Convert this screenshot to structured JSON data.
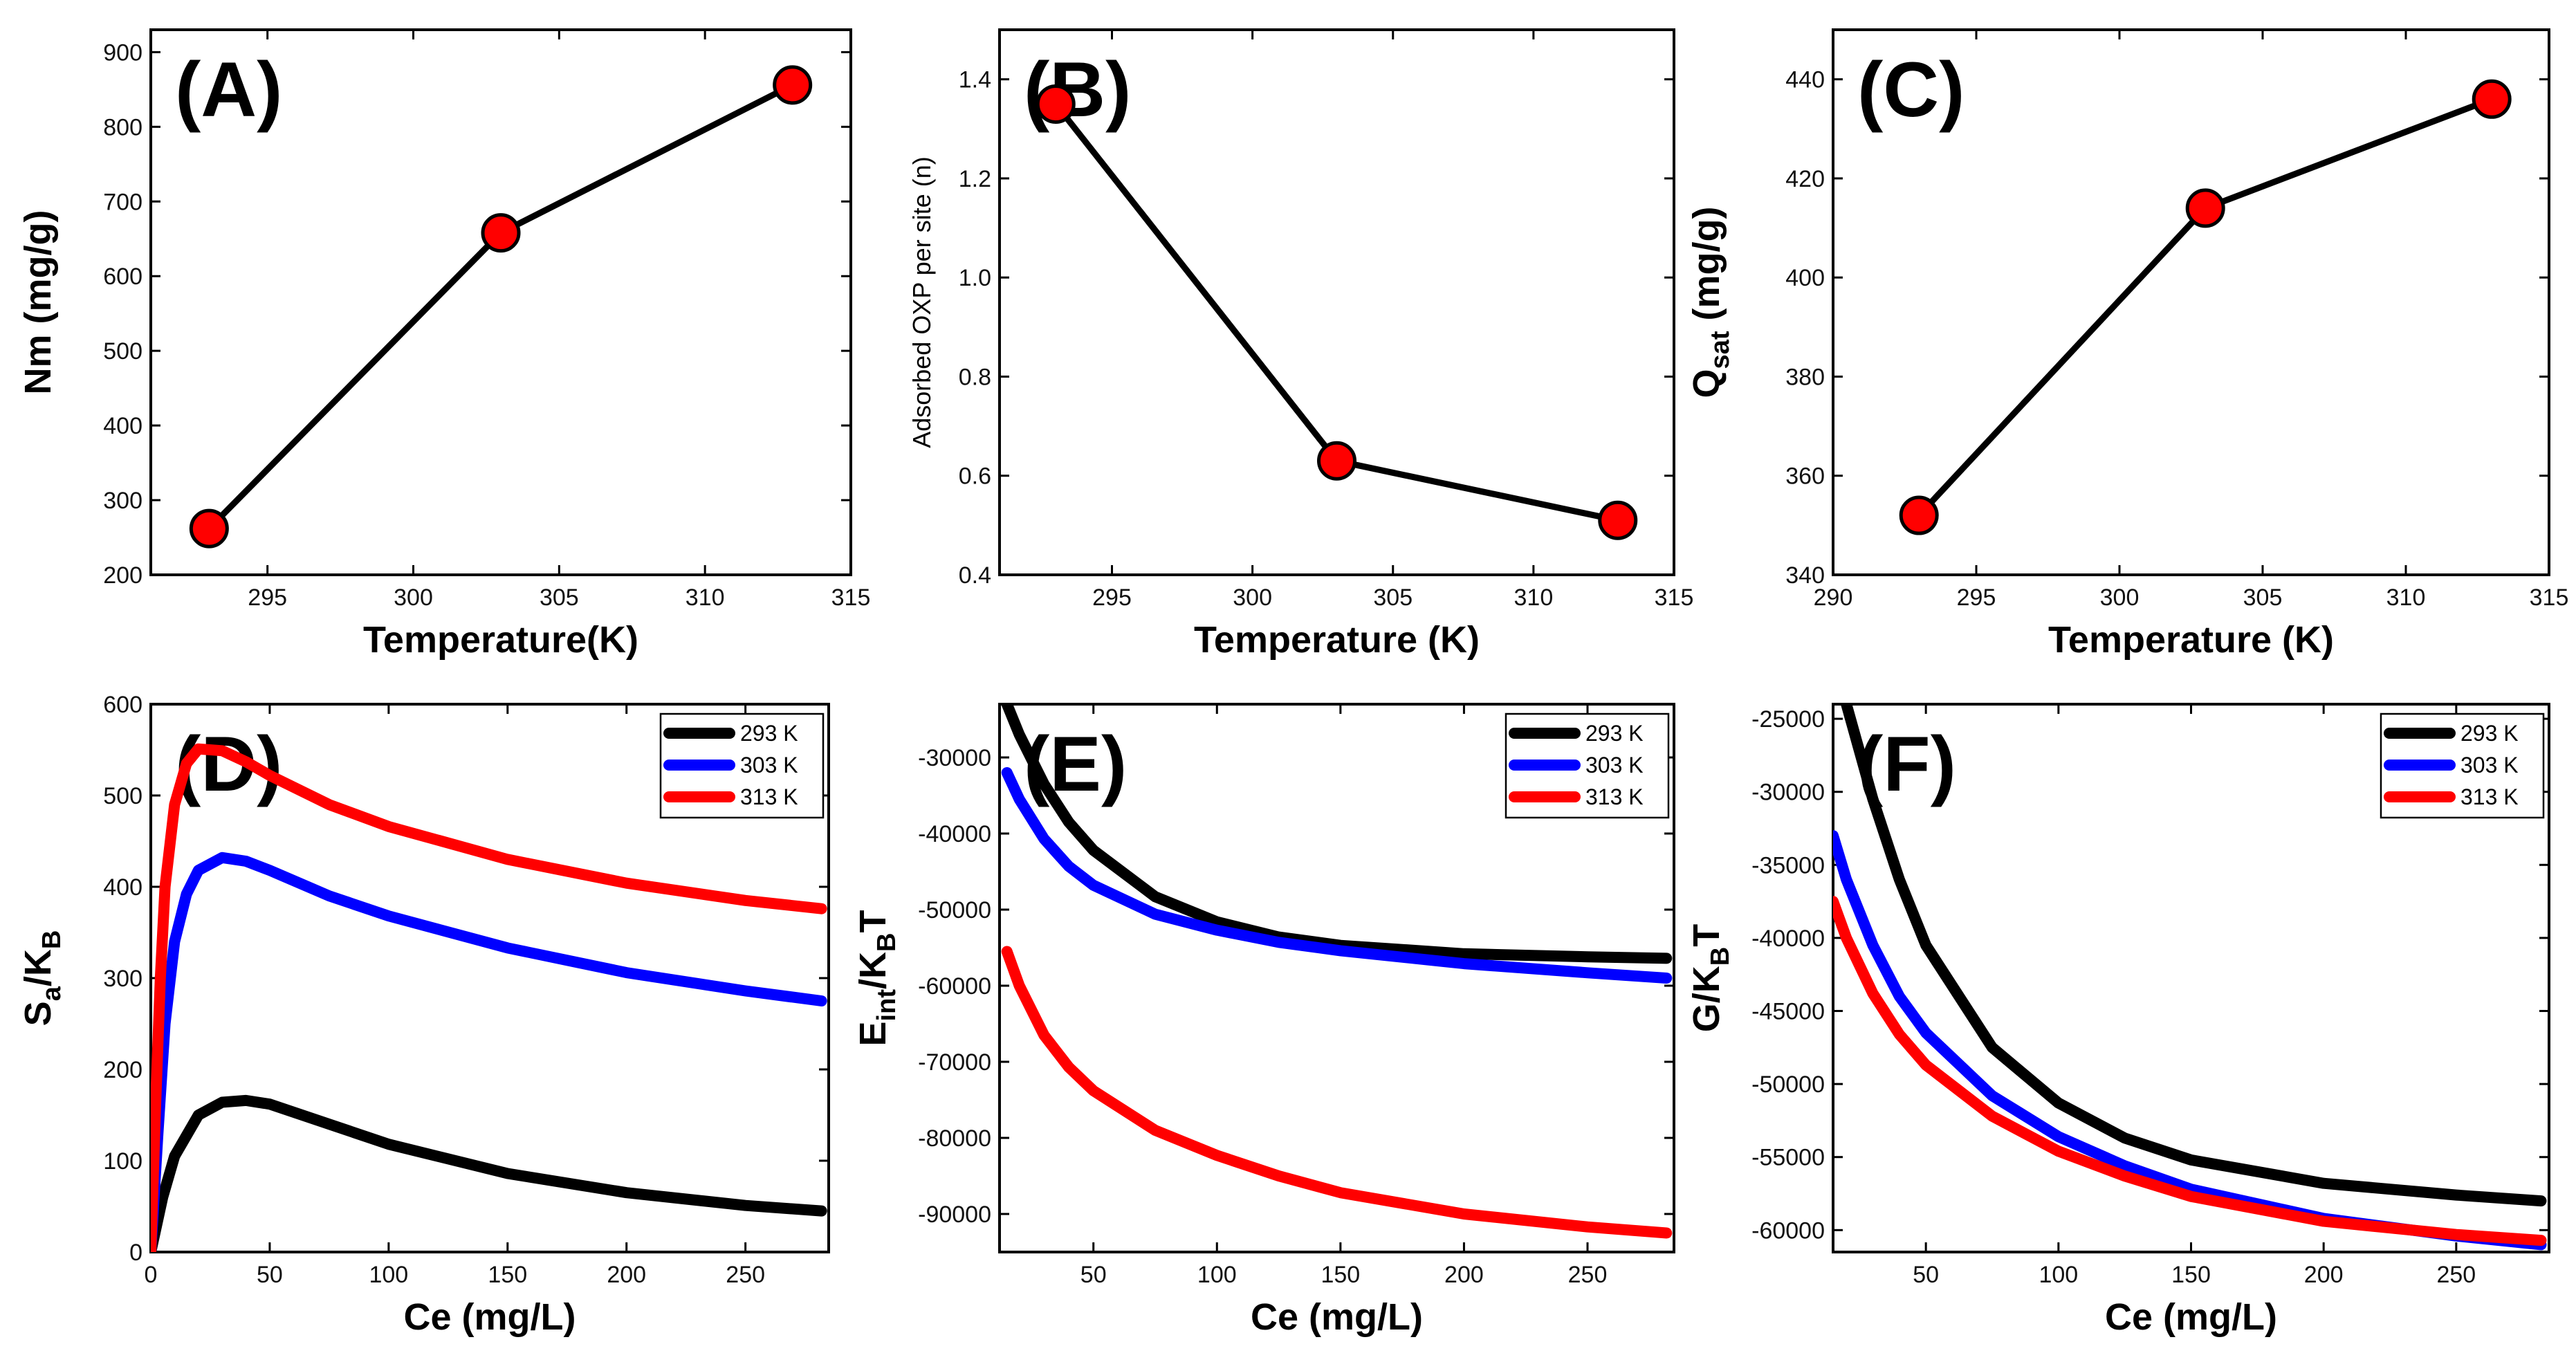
{
  "figure": {
    "background": "#ffffff",
    "line_color": "#000000",
    "marker_color": "#ff0000"
  },
  "chart_data": [
    {
      "id": "A",
      "type": "line",
      "panel_label": "(A)",
      "xlabel": "Temperature(K)",
      "ylabel": {
        "main": "Nm (mg/g)"
      },
      "xlim": [
        291,
        315
      ],
      "ylim": [
        200,
        930
      ],
      "xticks": [
        295,
        300,
        305,
        310,
        315
      ],
      "yticks": [
        200,
        300,
        400,
        500,
        600,
        700,
        800,
        900
      ],
      "series": [
        {
          "name": "Nm",
          "x": [
            293,
            303,
            313
          ],
          "y": [
            262,
            658,
            856
          ],
          "color": "#000000",
          "marker": "#ff0000"
        }
      ]
    },
    {
      "id": "B",
      "type": "line",
      "panel_label": "(B)",
      "xlabel": "Temperature (K)",
      "ylabel": {
        "main": "Adsorbed OXP per site (n)"
      },
      "xlim": [
        291,
        315
      ],
      "ylim": [
        0.4,
        1.5
      ],
      "xticks": [
        295,
        300,
        305,
        310,
        315
      ],
      "yticks": [
        0.4,
        0.6,
        0.8,
        1.0,
        1.2,
        1.4
      ],
      "series": [
        {
          "name": "n",
          "x": [
            293,
            303,
            313
          ],
          "y": [
            1.35,
            0.63,
            0.51
          ],
          "color": "#000000",
          "marker": "#ff0000"
        }
      ]
    },
    {
      "id": "C",
      "type": "line",
      "panel_label": "(C)",
      "xlabel": "Temperature (K)",
      "ylabel": {
        "main": "Q",
        "sub": "sat",
        "rest": " (mg/g)"
      },
      "xlim": [
        290,
        315
      ],
      "ylim": [
        340,
        450
      ],
      "xticks": [
        290,
        295,
        300,
        305,
        310,
        315
      ],
      "yticks": [
        340,
        360,
        380,
        400,
        420,
        440
      ],
      "series": [
        {
          "name": "Qsat",
          "x": [
            293,
            303,
            313
          ],
          "y": [
            352,
            414,
            436
          ],
          "color": "#000000",
          "marker": "#ff0000"
        }
      ]
    },
    {
      "id": "D",
      "type": "line",
      "panel_label": "(D)",
      "xlabel": "Ce (mg/L)",
      "ylabel": {
        "main": "S",
        "sub": "a",
        "rest": "/K",
        "sub2": "B"
      },
      "xlim": [
        0,
        285
      ],
      "ylim": [
        0,
        600
      ],
      "xticks": [
        0,
        50,
        100,
        150,
        200,
        250
      ],
      "yticks": [
        0,
        100,
        200,
        300,
        400,
        500,
        600
      ],
      "legend": [
        "293 K",
        "303 K",
        "313 K"
      ],
      "series": [
        {
          "name": "293 K",
          "color": "#000000",
          "x": [
            0,
            5,
            10,
            20,
            30,
            40,
            50,
            75,
            100,
            150,
            200,
            250,
            282
          ],
          "y": [
            0,
            60,
            105,
            150,
            164,
            166,
            162,
            140,
            118,
            86,
            65,
            51,
            45
          ]
        },
        {
          "name": "303 K",
          "color": "#0000ff",
          "x": [
            0,
            3,
            6,
            10,
            15,
            20,
            30,
            40,
            50,
            75,
            100,
            150,
            200,
            250,
            282
          ],
          "y": [
            0,
            130,
            250,
            340,
            392,
            418,
            432,
            428,
            418,
            390,
            368,
            333,
            306,
            286,
            275
          ]
        },
        {
          "name": "313 K",
          "color": "#ff0000",
          "x": [
            0,
            2,
            4,
            6,
            10,
            15,
            20,
            30,
            40,
            50,
            75,
            100,
            150,
            200,
            250,
            282
          ],
          "y": [
            0,
            160,
            300,
            400,
            490,
            535,
            551,
            549,
            537,
            522,
            490,
            466,
            430,
            404,
            385,
            376
          ]
        }
      ]
    },
    {
      "id": "E",
      "type": "line",
      "panel_label": "(E)",
      "xlabel": "Ce (mg/L)",
      "ylabel": {
        "main": "E",
        "sub": "int",
        "rest": "/K",
        "sub2": "B",
        "rest2": "T"
      },
      "xlim": [
        12,
        285
      ],
      "ylim": [
        -95000,
        -23000
      ],
      "xticks": [
        50,
        100,
        150,
        200,
        250
      ],
      "yticks": [
        -30000,
        -40000,
        -50000,
        -60000,
        -70000,
        -80000,
        -90000
      ],
      "legend": [
        "293 K",
        "303 K",
        "313 K"
      ],
      "series": [
        {
          "name": "293 K",
          "color": "#000000",
          "x": [
            15,
            20,
            30,
            40,
            50,
            75,
            100,
            125,
            150,
            200,
            250,
            282
          ],
          "y": [
            -23000,
            -27000,
            -33500,
            -38500,
            -42200,
            -48300,
            -51600,
            -53600,
            -54700,
            -55800,
            -56200,
            -56400
          ]
        },
        {
          "name": "303 K",
          "color": "#0000ff",
          "x": [
            15,
            20,
            30,
            40,
            50,
            75,
            100,
            125,
            150,
            200,
            250,
            282
          ],
          "y": [
            -32000,
            -35500,
            -40700,
            -44300,
            -46800,
            -50600,
            -52700,
            -54300,
            -55400,
            -57100,
            -58300,
            -59000
          ]
        },
        {
          "name": "313 K",
          "color": "#ff0000",
          "x": [
            15,
            20,
            30,
            40,
            50,
            75,
            100,
            125,
            150,
            200,
            250,
            282
          ],
          "y": [
            -55500,
            -60000,
            -66500,
            -70700,
            -73800,
            -79000,
            -82300,
            -85000,
            -87200,
            -90000,
            -91700,
            -92500
          ]
        }
      ]
    },
    {
      "id": "F",
      "type": "line",
      "panel_label": "(F)",
      "xlabel": "Ce (mg/L)",
      "ylabel": {
        "main": "G/K",
        "sub": "B",
        "rest": "T"
      },
      "xlim": [
        15,
        285
      ],
      "ylim": [
        -61500,
        -24000
      ],
      "xticks": [
        50,
        100,
        150,
        200,
        250
      ],
      "yticks": [
        -25000,
        -30000,
        -35000,
        -40000,
        -45000,
        -50000,
        -55000,
        -60000
      ],
      "legend": [
        "293 K",
        "303 K",
        "313 K"
      ],
      "series": [
        {
          "name": "293 K",
          "color": "#000000",
          "x": [
            20,
            30,
            40,
            50,
            75,
            100,
            125,
            150,
            200,
            250,
            282
          ],
          "y": [
            -24000,
            -30500,
            -36000,
            -40500,
            -47500,
            -51300,
            -53700,
            -55200,
            -56800,
            -57600,
            -58000
          ]
        },
        {
          "name": "303 K",
          "color": "#0000ff",
          "x": [
            15,
            20,
            30,
            40,
            50,
            75,
            100,
            125,
            150,
            200,
            250,
            282
          ],
          "y": [
            -33000,
            -36000,
            -40500,
            -44000,
            -46500,
            -50800,
            -53600,
            -55600,
            -57200,
            -59200,
            -60400,
            -61000
          ]
        },
        {
          "name": "313 K",
          "color": "#ff0000",
          "x": [
            15,
            20,
            30,
            40,
            50,
            75,
            100,
            125,
            150,
            200,
            250,
            282
          ],
          "y": [
            -37500,
            -40000,
            -43800,
            -46600,
            -48700,
            -52200,
            -54600,
            -56300,
            -57700,
            -59400,
            -60300,
            -60700
          ]
        }
      ]
    }
  ]
}
